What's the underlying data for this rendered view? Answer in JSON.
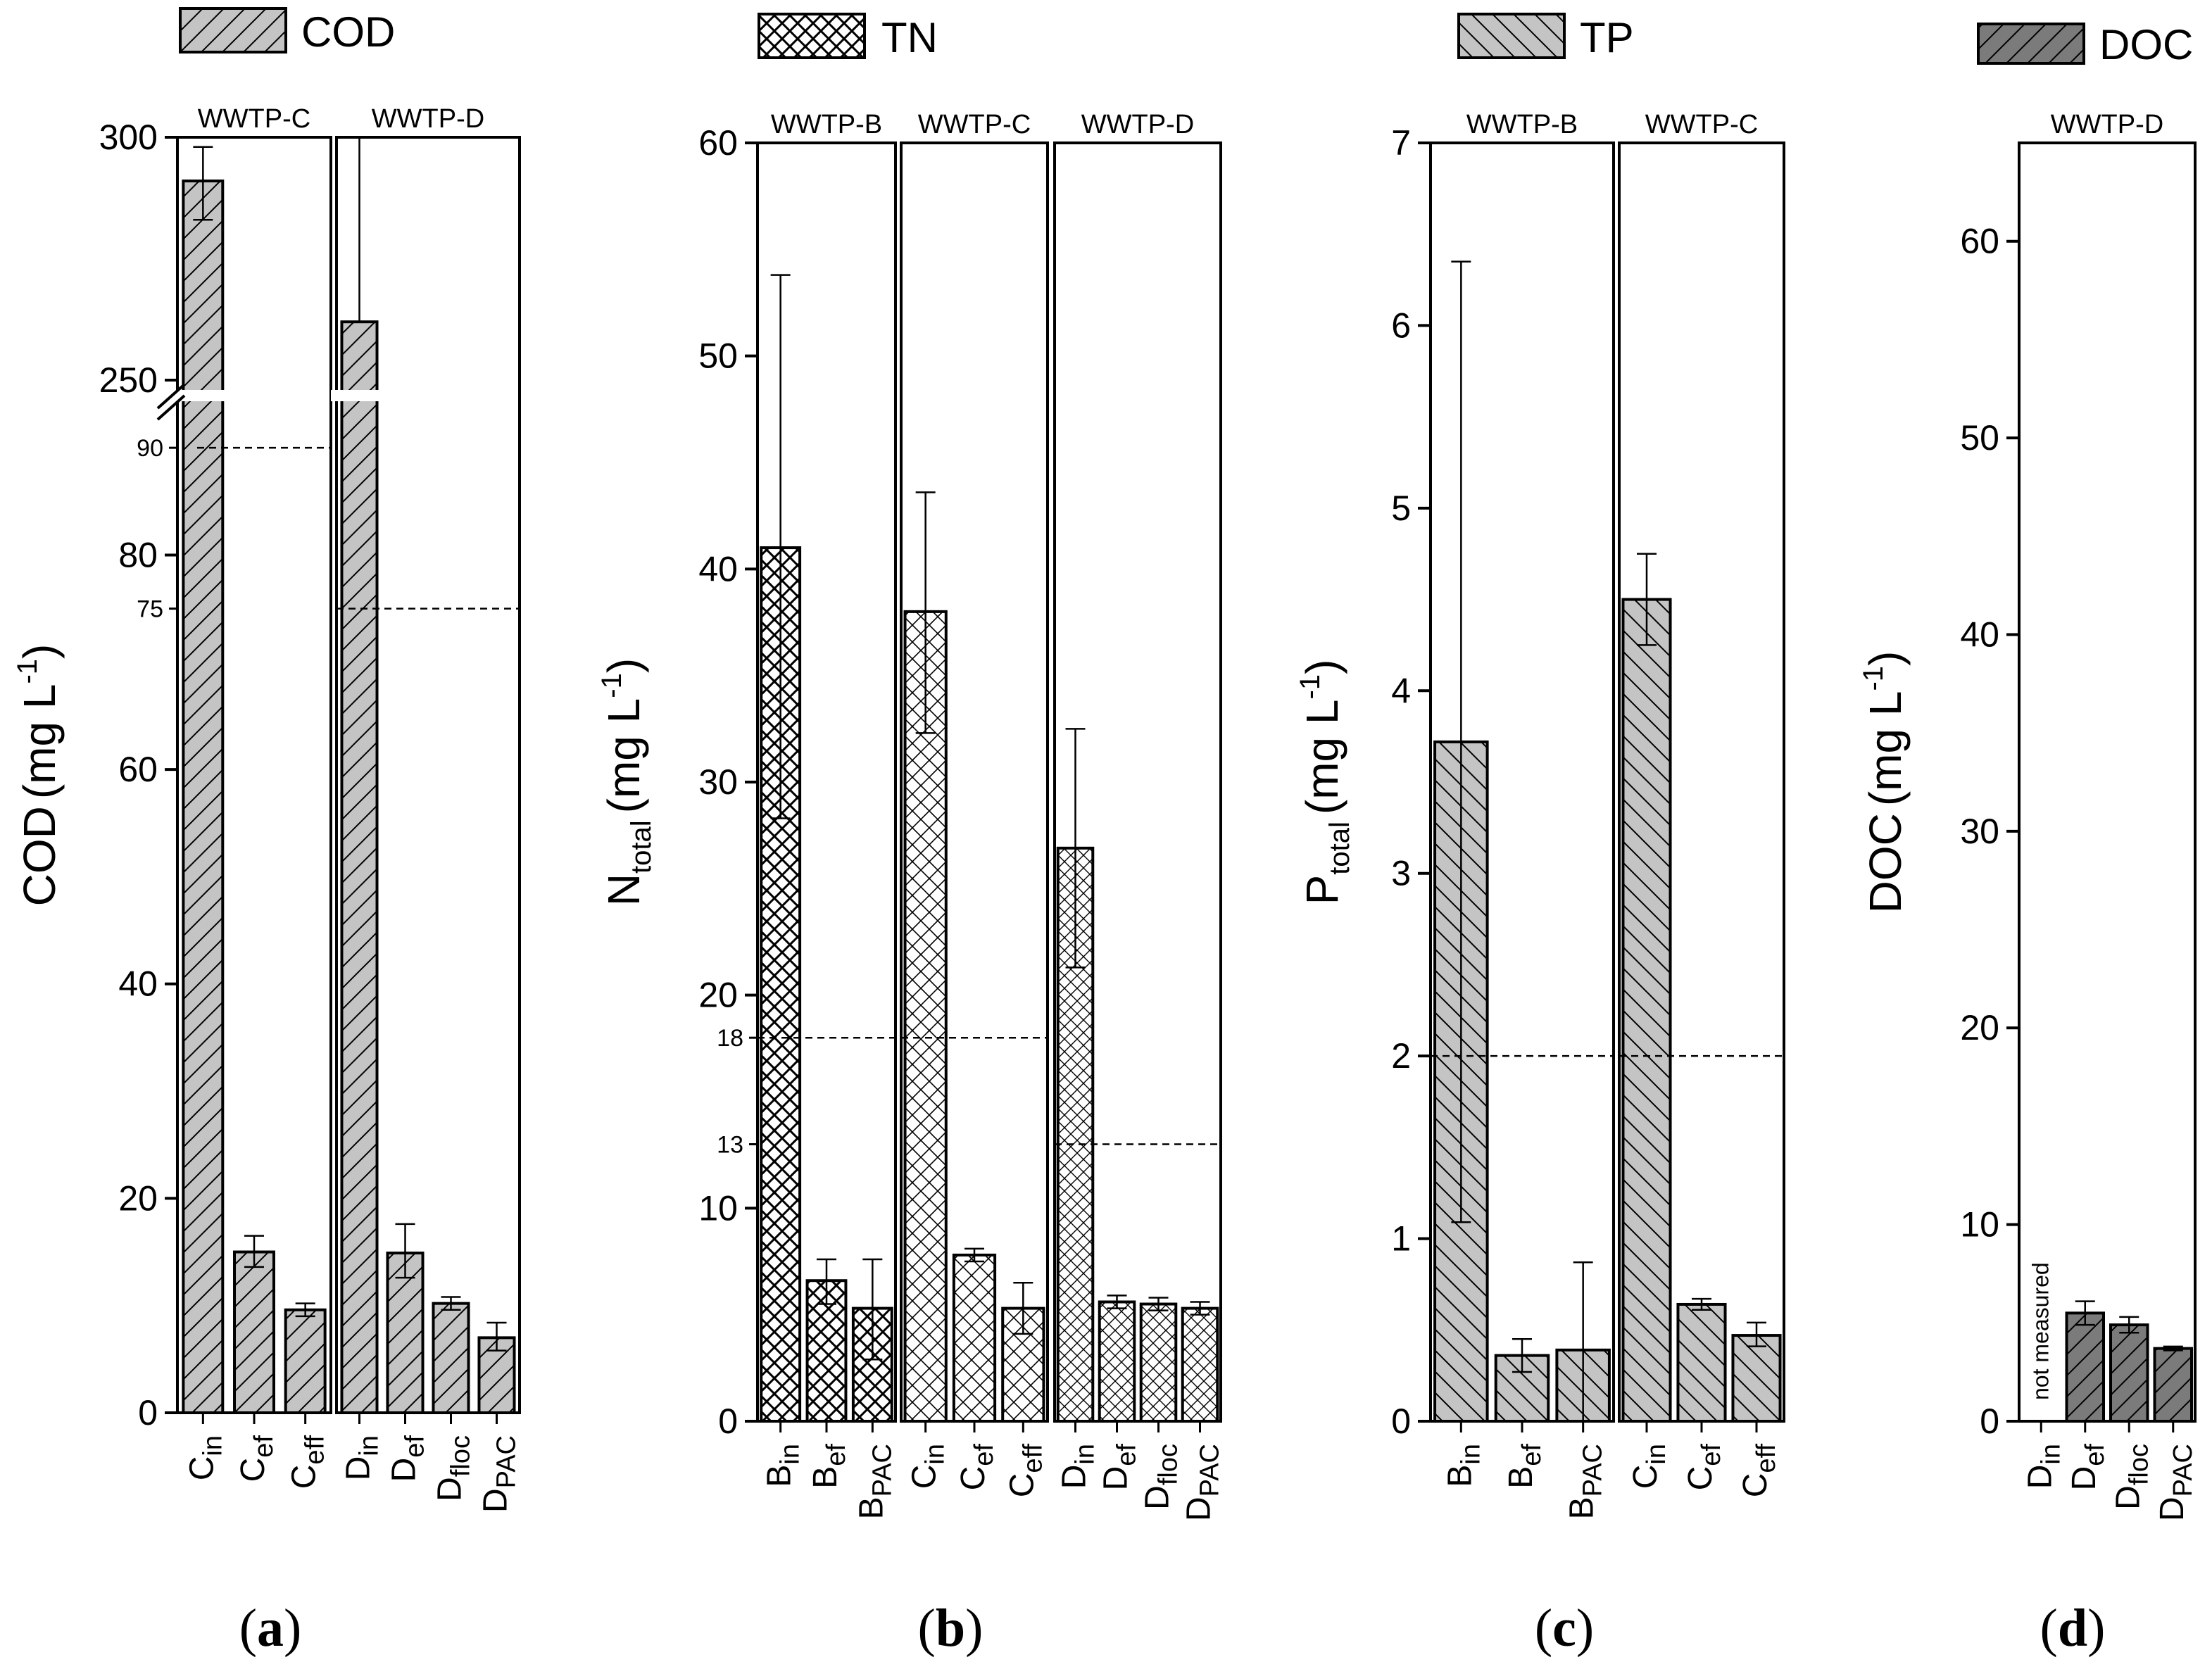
{
  "figure": {
    "colors": {
      "light": "#c4c4c4",
      "dark": "#7b7b7b",
      "line": "#000000",
      "ref_line": "#000000"
    },
    "sublabel_template": "(x)"
  },
  "chart_data": [
    {
      "id": "a",
      "type": "bar",
      "sublabel": "a",
      "legend": "COD",
      "pattern": "hatch-forward",
      "fill": "light",
      "ylabel": "COD",
      "ylabel_sub": "",
      "yunit": "(mg L",
      "yunit_sup": "-1",
      "ylim_lower": [
        0,
        95
      ],
      "ylim_upper": [
        250,
        300
      ],
      "axis_break": true,
      "yticks": [
        0,
        20,
        40,
        60,
        80,
        250,
        300
      ],
      "ref_ticks": [
        90,
        75
      ],
      "groups": [
        {
          "label": "WWTP-C",
          "bars": [
            {
              "main": "C",
              "sub": "in",
              "value": 291,
              "err": [
                283,
                298
              ]
            },
            {
              "main": "C",
              "sub": "ef",
              "value": 15,
              "err": [
                13.6,
                16.5
              ]
            },
            {
              "main": "C",
              "sub": "eff",
              "value": 9.6,
              "err": [
                9.0,
                10.2
              ]
            }
          ],
          "refs": [
            {
              "value": 90
            }
          ]
        },
        {
          "label": "WWTP-D",
          "bars": [
            {
              "main": "D",
              "sub": "in",
              "value": 262,
              "err": [
                262,
                300
              ]
            },
            {
              "main": "D",
              "sub": "ef",
              "value": 14.9,
              "err": [
                12.6,
                17.6
              ]
            },
            {
              "main": "D",
              "sub": "floc",
              "value": 10.2,
              "err": [
                9.6,
                10.8
              ]
            },
            {
              "main": "D",
              "sub": "PAC",
              "value": 7,
              "err": [
                5.8,
                8.4
              ]
            }
          ],
          "refs": [
            {
              "value": 75
            }
          ]
        }
      ]
    },
    {
      "id": "b",
      "type": "bar",
      "sublabel": "b",
      "legend": "TN",
      "pattern": "crosshatch",
      "fill": "none",
      "ylabel": "N",
      "ylabel_sub": "total",
      "yunit": "(mg L",
      "yunit_sup": "-1",
      "ylim": [
        0,
        60
      ],
      "yticks": [
        0,
        10,
        20,
        30,
        40,
        50,
        60
      ],
      "ref_ticks": [
        18,
        13
      ],
      "groups": [
        {
          "label": "WWTP-B",
          "pattern": "crosshatch-dense",
          "bars": [
            {
              "main": "B",
              "sub": "in",
              "value": 41,
              "err": [
                28.3,
                53.8
              ]
            },
            {
              "main": "B",
              "sub": "ef",
              "value": 6.6,
              "err": [
                5.5,
                7.6
              ]
            },
            {
              "main": "B",
              "sub": "PAC",
              "value": 5.3,
              "err": [
                2.9,
                7.6
              ]
            }
          ],
          "refs": [
            {
              "value": 18
            }
          ]
        },
        {
          "label": "WWTP-C",
          "pattern": "crosshatch-medium",
          "bars": [
            {
              "main": "C",
              "sub": "in",
              "value": 38,
              "err": [
                32.3,
                43.6
              ]
            },
            {
              "main": "C",
              "sub": "ef",
              "value": 7.8,
              "err": [
                7.5,
                8.1
              ]
            },
            {
              "main": "C",
              "sub": "eff",
              "value": 5.3,
              "err": [
                4.1,
                6.5
              ]
            }
          ],
          "refs": [
            {
              "value": 18
            }
          ]
        },
        {
          "label": "WWTP-D",
          "pattern": "crosshatch-fine",
          "bars": [
            {
              "main": "D",
              "sub": "in",
              "value": 26.9,
              "err": [
                21.3,
                32.5
              ]
            },
            {
              "main": "D",
              "sub": "ef",
              "value": 5.6,
              "err": [
                5.3,
                5.9
              ]
            },
            {
              "main": "D",
              "sub": "floc",
              "value": 5.5,
              "err": [
                5.2,
                5.8
              ]
            },
            {
              "main": "D",
              "sub": "PAC",
              "value": 5.3,
              "err": [
                5.0,
                5.6
              ]
            }
          ],
          "refs": [
            {
              "value": 13
            }
          ]
        }
      ]
    },
    {
      "id": "c",
      "type": "bar",
      "sublabel": "c",
      "legend": "TP",
      "pattern": "hatch-backward",
      "fill": "light",
      "ylabel": "P",
      "ylabel_sub": "total",
      "yunit": "(mg L",
      "yunit_sup": "-1",
      "ylim": [
        0,
        7
      ],
      "yticks": [
        0,
        1,
        2,
        3,
        4,
        5,
        6,
        7
      ],
      "ref_ticks": [],
      "groups": [
        {
          "label": "WWTP-B",
          "bars": [
            {
              "main": "B",
              "sub": "in",
              "value": 3.72,
              "err": [
                1.09,
                6.35
              ]
            },
            {
              "main": "B",
              "sub": "ef",
              "value": 0.36,
              "err": [
                0.27,
                0.45
              ]
            },
            {
              "main": "B",
              "sub": "PAC",
              "value": 0.39,
              "err": [
                0.0,
                0.87
              ]
            }
          ],
          "refs": [
            {
              "value": 2
            }
          ]
        },
        {
          "label": "WWTP-C",
          "bars": [
            {
              "main": "C",
              "sub": "in",
              "value": 4.5,
              "err": [
                4.25,
                4.75
              ]
            },
            {
              "main": "C",
              "sub": "ef",
              "value": 0.64,
              "err": [
                0.61,
                0.67
              ]
            },
            {
              "main": "C",
              "sub": "eff",
              "value": 0.47,
              "err": [
                0.41,
                0.54
              ]
            }
          ],
          "refs": [
            {
              "value": 2
            }
          ]
        }
      ]
    },
    {
      "id": "d",
      "type": "bar",
      "sublabel": "d",
      "legend": "DOC",
      "pattern": "hatch-forward",
      "fill": "dark",
      "ylabel": "DOC",
      "ylabel_sub": "",
      "yunit": "(mg L",
      "yunit_sup": "-1",
      "ylim": [
        0,
        65
      ],
      "yticks": [
        0,
        10,
        20,
        30,
        40,
        50,
        60
      ],
      "ref_ticks": [],
      "annotation": "not measured",
      "groups": [
        {
          "label": "WWTP-D",
          "bars": [
            {
              "main": "D",
              "sub": "in",
              "value": null,
              "err": null
            },
            {
              "main": "D",
              "sub": "ef",
              "value": 5.5,
              "err": [
                4.9,
                6.1
              ]
            },
            {
              "main": "D",
              "sub": "floc",
              "value": 4.9,
              "err": [
                4.5,
                5.3
              ]
            },
            {
              "main": "D",
              "sub": "PAC",
              "value": 3.7,
              "err": [
                3.6,
                3.8
              ]
            }
          ],
          "refs": []
        }
      ]
    }
  ]
}
